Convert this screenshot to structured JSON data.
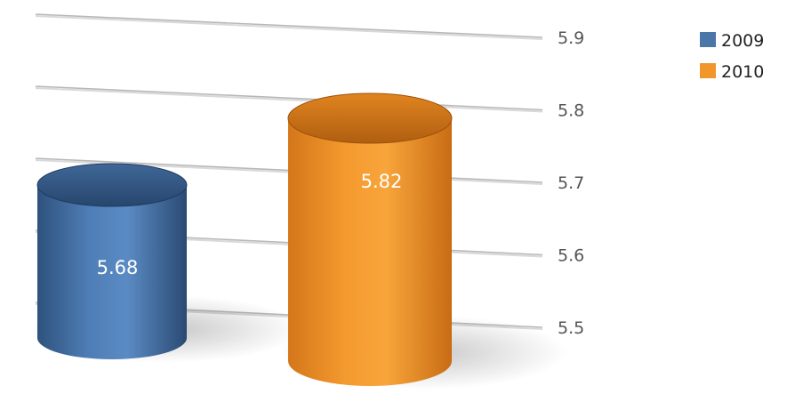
{
  "chart_data": {
    "type": "bar",
    "style": "3d-cylinder",
    "categories": [
      ""
    ],
    "series": [
      {
        "name": "2009",
        "values": [
          5.68
        ],
        "label": "5.68",
        "color": "#4a76a8"
      },
      {
        "name": "2010",
        "values": [
          5.82
        ],
        "label": "5.82",
        "color": "#f0962a"
      }
    ],
    "y_ticks": [
      "5.5",
      "5.6",
      "5.7",
      "5.8",
      "5.9"
    ],
    "ylim": [
      5.5,
      5.9
    ],
    "grid": true,
    "legend_position": "top-right"
  }
}
